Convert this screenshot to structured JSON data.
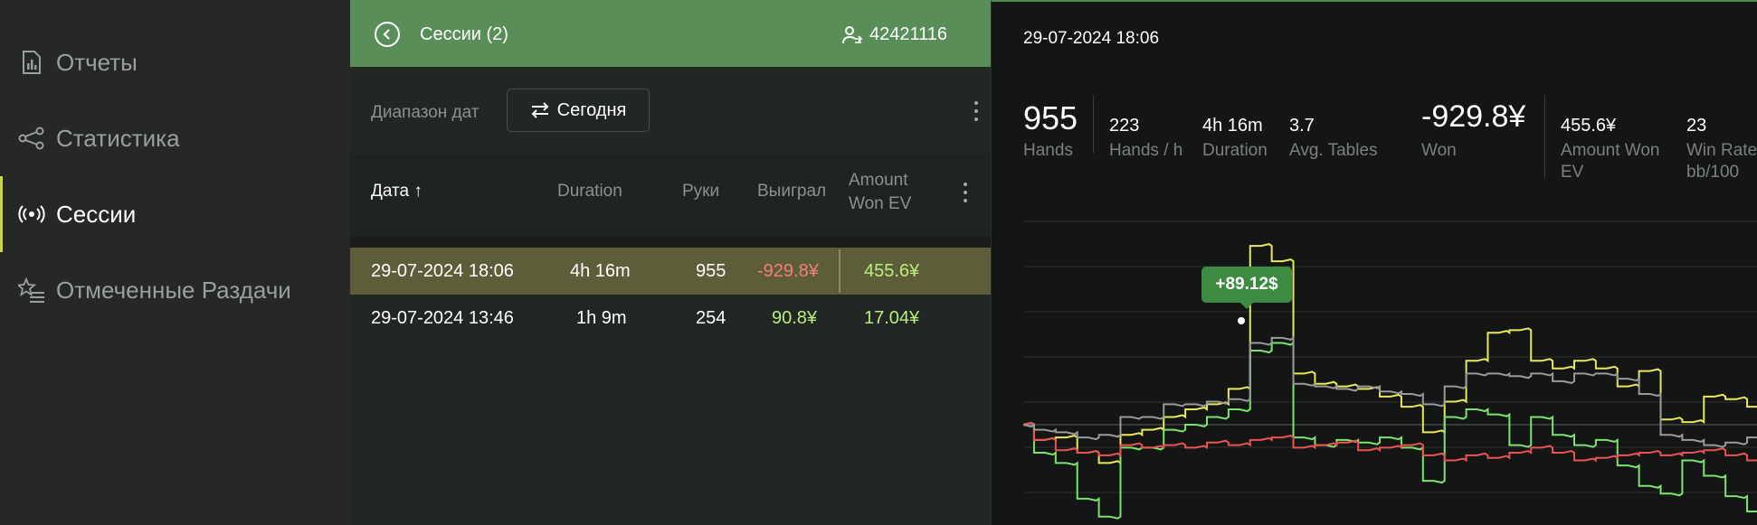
{
  "sidebar": {
    "items": [
      {
        "label": "Отчеты",
        "icon": "report-icon"
      },
      {
        "label": "Статистика",
        "icon": "share-nodes-icon"
      },
      {
        "label": "Сессии",
        "icon": "broadcast-icon",
        "active": true
      },
      {
        "label": "Отмеченные Раздачи",
        "icon": "starred-list-icon"
      }
    ]
  },
  "sessions": {
    "title": "Сессии (2)",
    "user_id": "42421116",
    "filter_label": "Диапазон дат",
    "date_button": "Сегодня",
    "columns": {
      "date": "Дата ↑",
      "duration": "Duration",
      "hands": "Руки",
      "won": "Выиграл",
      "amount_won_ev": "Amount Won EV"
    },
    "rows": [
      {
        "date": "29-07-2024 18:06",
        "duration": "4h 16m",
        "hands": "955",
        "won": "-929.8¥",
        "ev": "455.6¥",
        "selected": true
      },
      {
        "date": "29-07-2024 13:46",
        "duration": "1h 9m",
        "hands": "254",
        "won": "90.8¥",
        "ev": "17.04¥",
        "selected": false
      }
    ]
  },
  "detail": {
    "date": "29-07-2024 18:06",
    "stats": {
      "hands": {
        "value": "955",
        "label": "Hands"
      },
      "hands_per_hour": {
        "value": "223",
        "label": "Hands / h"
      },
      "duration": {
        "value": "4h 16m",
        "label": "Duration"
      },
      "avg_tables": {
        "value": "3.7",
        "label": "Avg. Tables"
      },
      "won": {
        "value": "-929.8¥",
        "label": "Won"
      },
      "amount_won_ev": {
        "value": "455.6¥",
        "label": "Amount Won EV"
      },
      "win_rate": {
        "value": "23",
        "label": "Win Rate bb/100"
      }
    },
    "tooltip": "+89.12$"
  },
  "colors": {
    "accent": "#5a8e58",
    "selected_row": "#5d5d3a",
    "negative": "#f0807a",
    "positive": "#b9ee7c",
    "series_yellow": "#e9e85a",
    "series_green": "#7de36d",
    "series_red": "#ea5353",
    "series_gray": "#9a9a9a"
  },
  "chart_data": {
    "type": "line",
    "series": [
      {
        "color": "#e9e85a",
        "values": [
          0,
          -6,
          -5,
          -11,
          -15,
          -4,
          -2,
          3,
          6,
          8,
          14,
          70,
          64,
          20,
          16,
          15,
          14,
          11,
          7,
          -3,
          9,
          25,
          36,
          37,
          25,
          22,
          25,
          22,
          15,
          21,
          2,
          1,
          11,
          10,
          7
        ]
      },
      {
        "color": "#7de36d",
        "values": [
          0,
          -11,
          -15,
          -29,
          -36,
          -9,
          -9,
          -2,
          0,
          3,
          6,
          29,
          32,
          -5,
          -8,
          -6,
          -7,
          -5,
          -9,
          -22,
          3,
          6,
          4,
          -8,
          3,
          -4,
          -8,
          -6,
          -16,
          -24,
          -27,
          -14,
          -20,
          -28,
          -34
        ]
      },
      {
        "color": "#ea5353",
        "values": [
          0,
          -6,
          -10,
          -11,
          -12,
          -8,
          -9,
          -8,
          -9,
          -7,
          -8,
          -6,
          -5,
          -9,
          -8,
          -7,
          -10,
          -9,
          -8,
          -12,
          -14,
          -12,
          -13,
          -11,
          -9,
          -11,
          -14,
          -13,
          -12,
          -11,
          -12,
          -11,
          -10,
          -12,
          -14
        ]
      },
      {
        "color": "#9a9a9a",
        "values": [
          0,
          -2,
          -3,
          -5,
          -4,
          3,
          3,
          8,
          8,
          9,
          10,
          32,
          34,
          16,
          15,
          14,
          15,
          13,
          12,
          8,
          15,
          20,
          20,
          19,
          20,
          17,
          20,
          20,
          18,
          12,
          -4,
          -6,
          -8,
          -7,
          -5
        ]
      }
    ],
    "grid": true
  }
}
